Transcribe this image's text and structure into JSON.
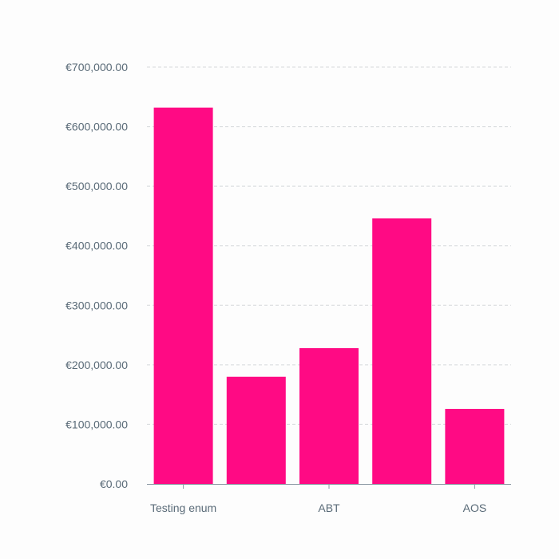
{
  "chart_data": {
    "type": "bar",
    "categories": [
      "Testing enum",
      "",
      "ABT",
      "",
      "AOS"
    ],
    "values": [
      632000,
      180000,
      228000,
      446000,
      126000
    ],
    "ylim": [
      0,
      700000
    ],
    "y_ticks": [
      0,
      100000,
      200000,
      300000,
      400000,
      500000,
      600000,
      700000
    ],
    "y_tick_labels": [
      "€0.00",
      "€100,000.00",
      "€200,000.00",
      "€300,000.00",
      "€400,000.00",
      "€500,000.00",
      "€600,000.00",
      "€700,000.00"
    ],
    "x_tick_labels": [
      "Testing enum",
      "ABT",
      "AOS"
    ],
    "x_tick_label_indices": [
      0,
      2,
      4
    ],
    "grid": true,
    "legend": "none",
    "colors": {
      "bar": "#ff0a84",
      "grid": "#d6d9dc",
      "axis": "#8a97a2",
      "text": "#5a6b78"
    }
  }
}
